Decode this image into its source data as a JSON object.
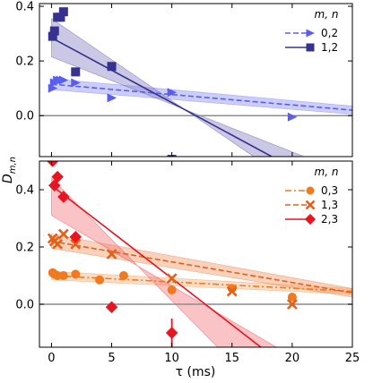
{
  "chart_data": [
    {
      "type": "scatter",
      "title": "",
      "xlabel": "",
      "ylabel": "",
      "xlim": [
        -1,
        25
      ],
      "ylim": [
        -0.15,
        0.41
      ],
      "x_ticks": [
        0,
        5,
        10,
        15,
        20,
        25
      ],
      "x_tick_labels": [
        "",
        "",
        "",
        "",
        "",
        ""
      ],
      "y_ticks": [
        0.0,
        0.2,
        0.4
      ],
      "y_tick_labels": [
        "0.0",
        "0.2",
        "0.4"
      ],
      "zero_line": true,
      "grid": false,
      "legend_title": "m, n",
      "legend_position": "top-right",
      "series": [
        {
          "name": "0,2",
          "marker": "triangle-right",
          "line_style": "dashed",
          "color": "#5a5ef0",
          "band_color": "#8f93f5",
          "points": [
            {
              "x": 0.1,
              "y": 0.1
            },
            {
              "x": 0.25,
              "y": 0.12
            },
            {
              "x": 0.5,
              "y": 0.13
            },
            {
              "x": 0.75,
              "y": 0.13
            },
            {
              "x": 1.0,
              "y": 0.13
            },
            {
              "x": 2.0,
              "y": 0.12
            },
            {
              "x": 5.0,
              "y": 0.065
            },
            {
              "x": 10.0,
              "y": 0.085
            },
            {
              "x": 20.0,
              "y": -0.005
            }
          ],
          "fit": {
            "x": [
              0,
              25
            ],
            "y": [
              0.115,
              0.02
            ]
          },
          "band": {
            "x": [
              0,
              25
            ],
            "upper": [
              0.135,
              0.035
            ],
            "lower": [
              0.095,
              0.005
            ]
          }
        },
        {
          "name": "1,2",
          "marker": "square",
          "line_style": "solid",
          "color": "#37318f",
          "band_color": "#8a86c6",
          "points": [
            {
              "x": 0.1,
              "y": 0.29
            },
            {
              "x": 0.25,
              "y": 0.31
            },
            {
              "x": 0.5,
              "y": 0.36
            },
            {
              "x": 0.75,
              "y": 0.36
            },
            {
              "x": 1.0,
              "y": 0.38
            },
            {
              "x": 2.0,
              "y": 0.16
            },
            {
              "x": 5.0,
              "y": 0.18
            },
            {
              "x": 10.0,
              "y": -0.16
            }
          ],
          "fit": {
            "x": [
              0,
              18.3
            ],
            "y": [
              0.285,
              -0.15
            ]
          },
          "band": {
            "x": [
              0,
              16.8,
              21.0,
              0
            ],
            "y": [
              0.355,
              -0.15,
              -0.15,
              0.215
            ]
          }
        }
      ]
    },
    {
      "type": "scatter",
      "title": "",
      "xlabel": "τ (ms)",
      "ylabel": "D_{m,n}",
      "xlim": [
        -1,
        25
      ],
      "ylim": [
        -0.15,
        0.5
      ],
      "x_ticks": [
        0,
        5,
        10,
        15,
        20,
        25
      ],
      "x_tick_labels": [
        "0",
        "5",
        "10",
        "15",
        "20",
        "25"
      ],
      "y_ticks": [
        0.0,
        0.2,
        0.4
      ],
      "y_tick_labels": [
        "0.0",
        "0.2",
        "0.4"
      ],
      "zero_line": true,
      "grid": false,
      "legend_title": "m, n",
      "legend_position": "top-right",
      "series": [
        {
          "name": "0,3",
          "marker": "circle",
          "line_style": "dashdot",
          "color": "#f07a1f",
          "band_color": "#f7b37e",
          "points": [
            {
              "x": 0.1,
              "y": 0.11
            },
            {
              "x": 0.25,
              "y": 0.105
            },
            {
              "x": 0.5,
              "y": 0.1
            },
            {
              "x": 1.0,
              "y": 0.1
            },
            {
              "x": 2.0,
              "y": 0.105
            },
            {
              "x": 4.0,
              "y": 0.085
            },
            {
              "x": 6.0,
              "y": 0.1
            },
            {
              "x": 10.0,
              "y": 0.05
            },
            {
              "x": 15.0,
              "y": 0.055
            },
            {
              "x": 20.0,
              "y": 0.025
            }
          ],
          "fit": {
            "x": [
              0,
              25
            ],
            "y": [
              0.1,
              0.045
            ]
          },
          "band": {
            "x": [
              0,
              25
            ],
            "upper": [
              0.115,
              0.055
            ],
            "lower": [
              0.085,
              0.035
            ]
          }
        },
        {
          "name": "1,3",
          "marker": "x",
          "line_style": "dashed",
          "color": "#e2611a",
          "band_color": "#f29b6c",
          "points": [
            {
              "x": 0.1,
              "y": 0.23
            },
            {
              "x": 0.25,
              "y": 0.22
            },
            {
              "x": 0.5,
              "y": 0.21
            },
            {
              "x": 1.0,
              "y": 0.245
            },
            {
              "x": 2.0,
              "y": 0.21
            },
            {
              "x": 5.0,
              "y": 0.175
            },
            {
              "x": 10.0,
              "y": 0.09
            },
            {
              "x": 15.0,
              "y": 0.045
            },
            {
              "x": 20.0,
              "y": 0.0
            }
          ],
          "fit": {
            "x": [
              0,
              25
            ],
            "y": [
              0.22,
              0.04
            ]
          },
          "band": {
            "x": [
              0,
              25
            ],
            "upper": [
              0.245,
              0.055
            ],
            "lower": [
              0.195,
              0.025
            ]
          }
        },
        {
          "name": "2,3",
          "marker": "diamond",
          "line_style": "solid",
          "color": "#e8141f",
          "band_color": "#f47a7f",
          "points": [
            {
              "x": 0.1,
              "y": 0.5
            },
            {
              "x": 0.25,
              "y": 0.415
            },
            {
              "x": 0.5,
              "y": 0.445
            },
            {
              "x": 1.0,
              "y": 0.375
            },
            {
              "x": 2.0,
              "y": 0.235
            },
            {
              "x": 5.0,
              "y": -0.01
            },
            {
              "x": 10.0,
              "y": -0.1,
              "yerr": 0.05
            }
          ],
          "fit": {
            "x": [
              0,
              17.4
            ],
            "y": [
              0.415,
              -0.15
            ]
          },
          "band": {
            "x": [
              0,
              13.8,
              18.7,
              0
            ],
            "y": [
              0.44,
              -0.15,
              -0.15,
              0.31
            ]
          }
        }
      ]
    }
  ]
}
